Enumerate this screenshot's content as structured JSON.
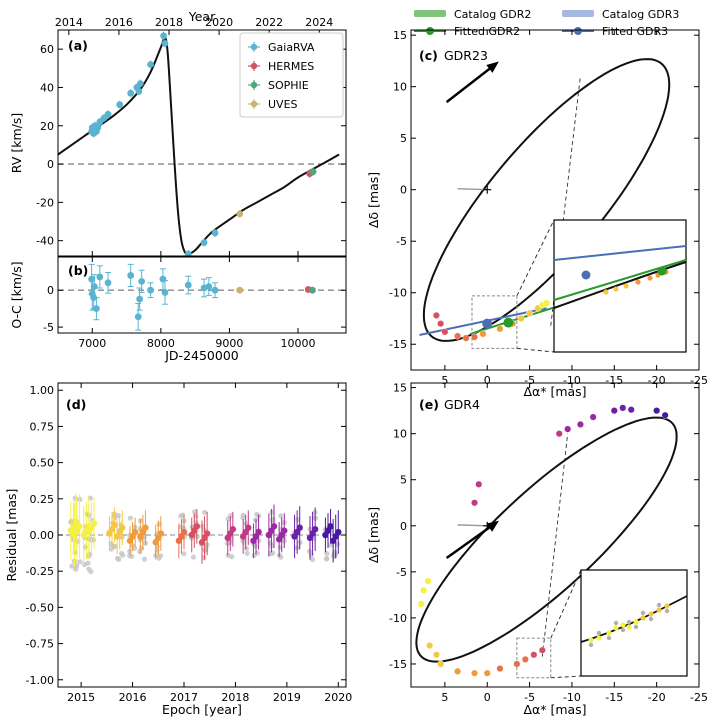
{
  "figure": {
    "colors": {
      "gaia": "#5ab4d0",
      "hermes": "#d2545e",
      "sophie": "#4fa87c",
      "uves": "#c8b46e",
      "gdr2_cat": "#7fc47a",
      "gdr2_fit": "#2a9a2a",
      "gdr3_cat": "#a5b8e0",
      "gdr3_fit": "#4a6fb5",
      "curve": "#111111",
      "zero": "#888888"
    },
    "top_legend": {
      "gdr2_catalog": "Catalog GDR2",
      "gdr2_fitted": "Fitted    GDR2",
      "gdr3_catalog": "Catalog GDR3",
      "gdr3_fitted": "Fitted    GDR3"
    }
  },
  "chart_data": [
    {
      "id": "a",
      "panel_label": "(a)",
      "type": "line",
      "title": "",
      "top_axis_label": "Year",
      "top_ticks": [
        2014,
        2016,
        2018,
        2020,
        2022,
        2024
      ],
      "ylabel": "RV [km/s]",
      "xlim": [
        6500,
        10700
      ],
      "ylim": [
        -48,
        70
      ],
      "yticks": [
        -40,
        -20,
        0,
        20,
        40,
        60
      ],
      "legend": [
        "GaiaRVA",
        "HERMES",
        "SOPHIE",
        "UVES"
      ],
      "model_curve": {
        "x": [
          6500,
          6700,
          6900,
          7100,
          7300,
          7500,
          7700,
          7850,
          8000,
          8060,
          8100,
          8150,
          8200,
          8250,
          8300,
          8350,
          8400,
          8500,
          8600,
          8700,
          8800,
          9000,
          9200,
          9400,
          9600,
          9800,
          10000,
          10200,
          10400,
          10600
        ],
        "y": [
          5,
          10,
          15,
          20,
          25,
          31,
          39,
          48,
          61,
          66,
          58,
          30,
          0,
          -25,
          -40,
          -46,
          -47,
          -45,
          -41,
          -37,
          -34,
          -29,
          -24,
          -20,
          -16,
          -12,
          -7,
          -3,
          1,
          5
        ]
      },
      "series": [
        {
          "name": "GaiaRVA",
          "x": [
            6990,
            7000,
            7010,
            7020,
            7040,
            7060,
            7080,
            7110,
            7170,
            7230,
            7400,
            7560,
            7650,
            7680,
            7700,
            7850,
            8040,
            8060,
            8400,
            8630,
            8790
          ],
          "y": [
            17,
            19,
            18,
            16,
            20,
            17,
            19,
            22,
            24,
            26,
            31,
            37,
            40,
            38,
            42,
            52,
            67,
            63,
            -47,
            -41,
            -36
          ]
        },
        {
          "name": "HERMES",
          "x": [
            10170
          ],
          "y": [
            -5
          ]
        },
        {
          "name": "SOPHIE",
          "x": [
            10220
          ],
          "y": [
            -4
          ]
        },
        {
          "name": "UVES",
          "x": [
            9150
          ],
          "y": [
            -26
          ]
        }
      ]
    },
    {
      "id": "b",
      "panel_label": "(b)",
      "type": "scatter",
      "xlabel": "JD-2450000",
      "ylabel": "O-C [km/s]",
      "xlim": [
        6500,
        10700
      ],
      "ylim": [
        -5.8,
        4.5
      ],
      "xticks": [
        7000,
        8000,
        9000,
        10000
      ],
      "yticks": [
        -5,
        0
      ],
      "series": [
        {
          "name": "GaiaRVA",
          "x": [
            6990,
            7000,
            7020,
            7030,
            7060,
            7110,
            7230,
            7560,
            7670,
            7690,
            7720,
            7850,
            8030,
            8060,
            8400,
            8630,
            8700,
            8790
          ],
          "y": [
            1.5,
            -0.5,
            -1.0,
            0.5,
            -2.5,
            1.8,
            1.0,
            2.0,
            -3.6,
            -1.2,
            1.2,
            0.0,
            1.5,
            -0.3,
            0.7,
            0.3,
            0.5,
            0.0
          ],
          "err": [
            2.0,
            2.2,
            1.5,
            1.6,
            1.5,
            1.5,
            1.4,
            1.5,
            1.8,
            1.5,
            1.5,
            1.0,
            1.4,
            1.6,
            1.2,
            1.2,
            1.2,
            1.0
          ]
        },
        {
          "name": "HERMES",
          "x": [
            10150
          ],
          "y": [
            0.1
          ],
          "err": [
            0.2
          ]
        },
        {
          "name": "SOPHIE",
          "x": [
            10210
          ],
          "y": [
            0.0
          ],
          "err": [
            0.2
          ]
        },
        {
          "name": "UVES",
          "x": [
            9150
          ],
          "y": [
            0.0
          ],
          "err": [
            0.2
          ]
        }
      ]
    },
    {
      "id": "c",
      "panel_label": "(c)",
      "name": "GDR23",
      "type": "line",
      "xlabel": "Δα* [mas]",
      "ylabel": "Δδ [mas]",
      "xlim": [
        9,
        -25
      ],
      "ylim": [
        -17.5,
        15.5
      ],
      "xticks": [
        5,
        0,
        -5,
        -10,
        -15,
        -20,
        -25
      ],
      "yticks": [
        -15,
        -10,
        -5,
        0,
        5,
        10,
        15
      ],
      "orbit_ellipse": {
        "center": [
          -7.0,
          -1.0
        ],
        "semi_axes": [
          19.0,
          6.0
        ],
        "tilt_deg": 43
      },
      "line_of_nodes": {
        "from": [
          -7.5,
          -13.2
        ],
        "to": [
          -11.0,
          11.0
        ]
      },
      "gdr2_fitted_position": [
        -2.5,
        -12.9
      ],
      "gdr3_fitted_position": [
        0.0,
        -13.0
      ],
      "epoch_points": {
        "x": [
          6.0,
          5.5,
          5.0,
          3.5,
          2.5,
          1.5,
          0.5,
          -1.5,
          -3.0,
          -4.0,
          -5.0,
          -6.0,
          -6.5,
          -7.0
        ],
        "y": [
          -12.2,
          -13.0,
          -13.8,
          -14.2,
          -14.4,
          -14.3,
          -14.0,
          -13.5,
          -13.0,
          -12.5,
          -12.0,
          -11.5,
          -11.2,
          -11.0
        ]
      }
    },
    {
      "id": "d",
      "panel_label": "(d)",
      "type": "scatter",
      "xlabel": "Epoch [year]",
      "ylabel": "Residual [mas]",
      "xlim": [
        2014.55,
        2020.15
      ],
      "ylim": [
        -1.05,
        1.05
      ],
      "xticks": [
        2015,
        2016,
        2017,
        2018,
        2019,
        2020
      ],
      "yticks": [
        -1.0,
        -0.75,
        -0.5,
        -0.25,
        0.0,
        0.25,
        0.5,
        0.75,
        1.0
      ],
      "epochs": [
        2014.85,
        2014.92,
        2015.1,
        2015.2,
        2015.6,
        2015.75,
        2016.0,
        2016.2,
        2016.5,
        2016.95,
        2017.2,
        2017.4,
        2017.9,
        2018.2,
        2018.4,
        2018.7,
        2018.9,
        2019.2,
        2019.5,
        2019.8,
        2019.95
      ],
      "binned_residuals": [
        0.06,
        0.03,
        0.03,
        0.05,
        0.04,
        0.02,
        -0.01,
        0.02,
        -0.02,
        -0.01,
        0.03,
        -0.02,
        0.01,
        0.02,
        -0.01,
        0.03,
        0.0,
        0.02,
        0.01,
        0.03,
        -0.01
      ],
      "error_bars": [
        0.2,
        0.22,
        0.2,
        0.18,
        0.12,
        0.12,
        0.1,
        0.12,
        0.12,
        0.12,
        0.12,
        0.15,
        0.12,
        0.12,
        0.12,
        0.15,
        0.12,
        0.15,
        0.15,
        0.12,
        0.15
      ]
    },
    {
      "id": "e",
      "panel_label": "(e)",
      "name": "GDR4",
      "type": "line",
      "xlabel": "Δα* [mas]",
      "ylabel": "Δδ [mas]",
      "xlim": [
        9,
        -25
      ],
      "ylim": [
        -17.5,
        15.5
      ],
      "xticks": [
        5,
        0,
        -5,
        -10,
        -15,
        -20,
        -25
      ],
      "yticks": [
        -15,
        -10,
        -5,
        0,
        5,
        10,
        15
      ],
      "orbit_ellipse": {
        "center": [
          -7.0,
          -1.5
        ],
        "semi_axes": [
          19.5,
          5.6
        ],
        "tilt_deg": 40
      },
      "line_of_nodes": {
        "from": [
          -6.5,
          -14.2
        ],
        "to": [
          -9.5,
          10.0
        ]
      },
      "epoch_points": {
        "x": [
          7.8,
          7.5,
          7.0,
          6.8,
          6.0,
          5.5,
          3.5,
          1.5,
          0.0,
          -1.5,
          -3.5,
          -4.5,
          -5.5,
          -6.5,
          1.5,
          1.0,
          -8.5,
          -9.5,
          -11.0,
          -12.5,
          -15.0,
          -16.0,
          -17.0,
          -20.0,
          -21.0
        ],
        "y": [
          -8.5,
          -7.0,
          -6.0,
          -13.0,
          -14.0,
          -15.0,
          -15.8,
          -16.0,
          -16.0,
          -15.5,
          -15.0,
          -14.5,
          -14.0,
          -13.5,
          2.5,
          4.5,
          10.0,
          10.5,
          11.0,
          11.8,
          12.5,
          12.8,
          12.6,
          12.5,
          12.0
        ]
      }
    }
  ]
}
